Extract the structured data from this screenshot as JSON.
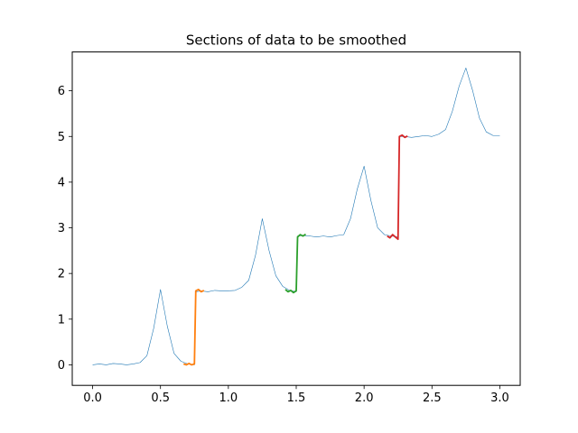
{
  "chart_data": {
    "type": "line",
    "title": "Sections of data to be smoothed",
    "xlabel": "",
    "ylabel": "",
    "xlim": [
      -0.15,
      3.15
    ],
    "ylim": [
      -0.45,
      6.85
    ],
    "xticks": [
      0.0,
      0.5,
      1.0,
      1.5,
      2.0,
      2.5,
      3.0
    ],
    "xtick_labels": [
      "0.0",
      "0.5",
      "1.0",
      "1.5",
      "2.0",
      "2.5",
      "3.0"
    ],
    "yticks": [
      0,
      1,
      2,
      3,
      4,
      5,
      6
    ],
    "ytick_labels": [
      "0",
      "1",
      "2",
      "3",
      "4",
      "5",
      "6"
    ],
    "grid": false,
    "legend": "none",
    "colors": {
      "main": "#1f77b4",
      "orange": "#ff7f0e",
      "green": "#2ca02c",
      "red": "#d62728"
    },
    "series": [
      {
        "color": "#1f77b4",
        "x": [
          0.0,
          0.05,
          0.1,
          0.15,
          0.2,
          0.25,
          0.3,
          0.35,
          0.4,
          0.45,
          0.5,
          0.55,
          0.6,
          0.65,
          0.7,
          0.75,
          0.76,
          0.8,
          0.85,
          0.9,
          0.95,
          1.0,
          1.05,
          1.1,
          1.15,
          1.2,
          1.25,
          1.3,
          1.35,
          1.4,
          1.45,
          1.5,
          1.51,
          1.55,
          1.6,
          1.65,
          1.7,
          1.75,
          1.8,
          1.85,
          1.9,
          1.95,
          2.0,
          2.05,
          2.1,
          2.15,
          2.2,
          2.25,
          2.26,
          2.3,
          2.35,
          2.4,
          2.45,
          2.5,
          2.55,
          2.6,
          2.65,
          2.7,
          2.75,
          2.8,
          2.85,
          2.9,
          2.95,
          3.0
        ],
        "y": [
          0.0,
          0.02,
          0.0,
          0.03,
          0.02,
          0.0,
          0.02,
          0.05,
          0.2,
          0.8,
          1.65,
          0.85,
          0.25,
          0.08,
          0.02,
          0.0,
          1.6,
          1.62,
          1.6,
          1.63,
          1.62,
          1.62,
          1.63,
          1.7,
          1.85,
          2.4,
          3.2,
          2.5,
          1.95,
          1.72,
          1.63,
          1.6,
          2.82,
          2.83,
          2.82,
          2.8,
          2.82,
          2.8,
          2.83,
          2.85,
          3.2,
          3.85,
          4.35,
          3.6,
          3.0,
          2.85,
          2.82,
          2.8,
          5.0,
          5.0,
          4.98,
          5.0,
          5.02,
          5.0,
          5.05,
          5.15,
          5.55,
          6.1,
          6.5,
          6.0,
          5.4,
          5.1,
          5.02,
          5.02
        ]
      },
      {
        "color": "#ff7f0e",
        "x": [
          0.67,
          0.69,
          0.71,
          0.73,
          0.75,
          0.76,
          0.78,
          0.8,
          0.82
        ],
        "y": [
          0.02,
          0.0,
          0.03,
          0.0,
          0.02,
          1.62,
          1.65,
          1.6,
          1.63
        ]
      },
      {
        "color": "#2ca02c",
        "x": [
          1.42,
          1.44,
          1.46,
          1.48,
          1.5,
          1.51,
          1.53,
          1.55,
          1.57
        ],
        "y": [
          1.65,
          1.6,
          1.63,
          1.58,
          1.62,
          2.8,
          2.85,
          2.82,
          2.86
        ]
      },
      {
        "color": "#d62728",
        "x": [
          2.17,
          2.19,
          2.21,
          2.23,
          2.25,
          2.26,
          2.28,
          2.3,
          2.32
        ],
        "y": [
          2.82,
          2.78,
          2.85,
          2.8,
          2.75,
          5.0,
          5.03,
          4.98,
          5.01
        ]
      }
    ]
  }
}
